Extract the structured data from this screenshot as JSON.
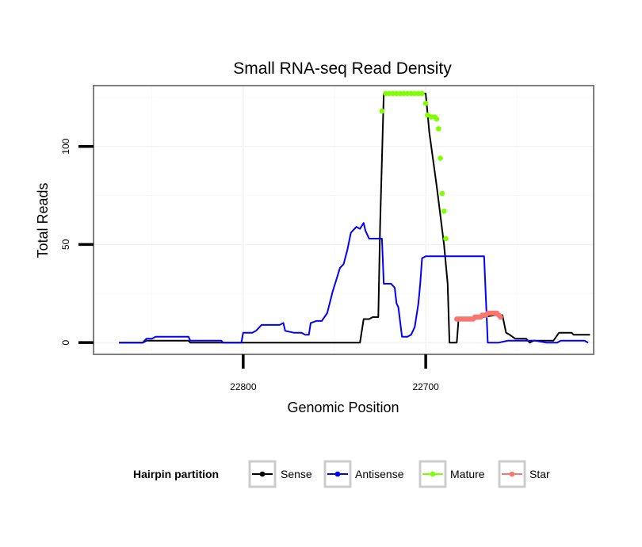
{
  "chart_data": {
    "type": "line",
    "title": "Small RNA-seq Read Density",
    "xlabel": "Genomic Position",
    "ylabel": "Total Reads",
    "xlim": [
      22882,
      22608
    ],
    "ylim": [
      -6,
      131
    ],
    "x_ticks": [
      22800,
      22700
    ],
    "x_tick_labels": [
      "22800",
      "22700"
    ],
    "y_ticks": [
      0,
      50,
      100
    ],
    "y_tick_labels": [
      "0",
      "50",
      "100"
    ],
    "legend": {
      "title": "Hairpin partition",
      "placement": "bottom",
      "entries": [
        "Sense",
        "Antisense",
        "Mature",
        "Star"
      ]
    },
    "series": [
      {
        "name": "Sense",
        "color": "#000000",
        "style": "line",
        "points": [
          [
            22868,
            0
          ],
          [
            22855,
            0
          ],
          [
            22853,
            1
          ],
          [
            22840,
            1
          ],
          [
            22839,
            1
          ],
          [
            22830,
            1
          ],
          [
            22829,
            0
          ],
          [
            22820,
            0
          ],
          [
            22808,
            0
          ],
          [
            22790,
            0
          ],
          [
            22770,
            0
          ],
          [
            22752,
            0
          ],
          [
            22740,
            0
          ],
          [
            22736,
            0
          ],
          [
            22734,
            12
          ],
          [
            22732,
            12
          ],
          [
            22731,
            12
          ],
          [
            22729,
            13
          ],
          [
            22726,
            13
          ],
          [
            22725,
            60
          ],
          [
            22723,
            127
          ],
          [
            22712,
            127
          ],
          [
            22700,
            127
          ],
          [
            22698,
            107
          ],
          [
            22694,
            80
          ],
          [
            22690,
            50
          ],
          [
            22688,
            30
          ],
          [
            22687,
            0
          ],
          [
            22683,
            0
          ],
          [
            22682,
            12
          ],
          [
            22675,
            12
          ],
          [
            22662,
            14
          ],
          [
            22658,
            14
          ],
          [
            22656,
            5
          ],
          [
            22654,
            4
          ],
          [
            22651,
            2
          ],
          [
            22645,
            2
          ],
          [
            22643,
            0
          ],
          [
            22641,
            1
          ],
          [
            22630,
            1
          ],
          [
            22627,
            5
          ],
          [
            22620,
            5
          ],
          [
            22619,
            4
          ],
          [
            22610,
            4
          ]
        ]
      },
      {
        "name": "Antisense",
        "color": "#0000ff",
        "style": "line",
        "points": [
          [
            22868,
            0
          ],
          [
            22855,
            0
          ],
          [
            22853,
            2
          ],
          [
            22850,
            2
          ],
          [
            22848,
            3
          ],
          [
            22838,
            3
          ],
          [
            22830,
            3
          ],
          [
            22829,
            1
          ],
          [
            22826,
            1
          ],
          [
            22825,
            1
          ],
          [
            22812,
            1
          ],
          [
            22811,
            0
          ],
          [
            22801,
            0
          ],
          [
            22800,
            5
          ],
          [
            22795,
            5
          ],
          [
            22793,
            6
          ],
          [
            22790,
            9
          ],
          [
            22780,
            9
          ],
          [
            22778,
            10
          ],
          [
            22777,
            6
          ],
          [
            22772,
            5
          ],
          [
            22768,
            5
          ],
          [
            22766,
            4
          ],
          [
            22764,
            4
          ],
          [
            22763,
            10
          ],
          [
            22760,
            11
          ],
          [
            22757,
            11
          ],
          [
            22754,
            15
          ],
          [
            22751,
            26
          ],
          [
            22749,
            32
          ],
          [
            22747,
            38
          ],
          [
            22745,
            40
          ],
          [
            22743,
            47
          ],
          [
            22741,
            56
          ],
          [
            22738,
            59
          ],
          [
            22736,
            58
          ],
          [
            22734,
            61
          ],
          [
            22733,
            57
          ],
          [
            22731,
            53
          ],
          [
            22727,
            53
          ],
          [
            22724,
            53
          ],
          [
            22723,
            30
          ],
          [
            22719,
            30
          ],
          [
            22717,
            28
          ],
          [
            22716,
            20
          ],
          [
            22715,
            18
          ],
          [
            22713,
            3
          ],
          [
            22710,
            3
          ],
          [
            22708,
            4
          ],
          [
            22706,
            8
          ],
          [
            22704,
            20
          ],
          [
            22703,
            30
          ],
          [
            22702,
            43
          ],
          [
            22700,
            44
          ],
          [
            22690,
            44
          ],
          [
            22680,
            44
          ],
          [
            22670,
            44
          ],
          [
            22668,
            44
          ],
          [
            22666,
            0
          ],
          [
            22660,
            0
          ],
          [
            22655,
            1
          ],
          [
            22640,
            1
          ],
          [
            22634,
            0
          ],
          [
            22628,
            0
          ],
          [
            22626,
            1
          ],
          [
            22616,
            1
          ],
          [
            22613,
            1
          ],
          [
            22611,
            0
          ]
        ]
      },
      {
        "name": "Mature",
        "color": "#7fff00",
        "style": "points",
        "points": [
          [
            22724,
            118
          ],
          [
            22722,
            127
          ],
          [
            22720,
            127
          ],
          [
            22718,
            127
          ],
          [
            22716,
            127
          ],
          [
            22714,
            127
          ],
          [
            22712,
            127
          ],
          [
            22710,
            127
          ],
          [
            22708,
            127
          ],
          [
            22706,
            127
          ],
          [
            22704,
            127
          ],
          [
            22702,
            127
          ],
          [
            22700,
            122
          ],
          [
            22699,
            116
          ],
          [
            22697,
            115
          ],
          [
            22695,
            115
          ],
          [
            22694,
            114
          ],
          [
            22693,
            109
          ],
          [
            22692,
            94
          ],
          [
            22691,
            76
          ],
          [
            22690,
            67
          ],
          [
            22689,
            53
          ]
        ]
      },
      {
        "name": "Star",
        "color": "#f8766d",
        "style": "points",
        "points": [
          [
            22683,
            12
          ],
          [
            22682,
            12
          ],
          [
            22681,
            12
          ],
          [
            22680,
            12
          ],
          [
            22679,
            12
          ],
          [
            22678,
            12
          ],
          [
            22677,
            12
          ],
          [
            22676,
            12
          ],
          [
            22675,
            12
          ],
          [
            22674,
            12
          ],
          [
            22673,
            13
          ],
          [
            22672,
            13
          ],
          [
            22671,
            13
          ],
          [
            22670,
            13
          ],
          [
            22669,
            14
          ],
          [
            22668,
            14
          ],
          [
            22667,
            14
          ],
          [
            22666,
            15
          ],
          [
            22665,
            15
          ],
          [
            22664,
            15
          ],
          [
            22663,
            15
          ],
          [
            22662,
            15
          ],
          [
            22661,
            15
          ],
          [
            22660,
            14
          ],
          [
            22659,
            13
          ]
        ]
      }
    ]
  }
}
